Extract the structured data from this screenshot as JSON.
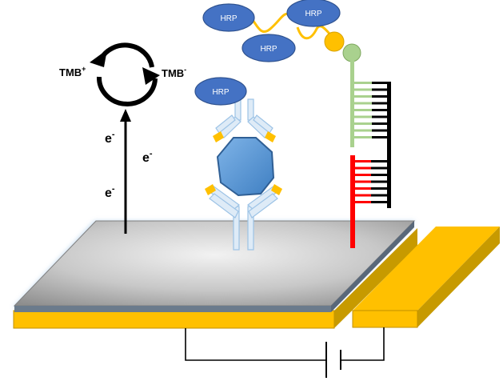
{
  "labels": {
    "hrp": "HRP",
    "tmb_ox_base": "TMB",
    "tmb_ox_sup": "+",
    "tmb_red_base": "TMB",
    "tmb_red_sup": "-",
    "electron_base": "e",
    "electron_sup": "-"
  },
  "colors": {
    "hrp_fill": "#4472c4",
    "hrp_stroke": "#2f528f",
    "gold": "#ffc000",
    "gold_dark": "#c09000",
    "antigen": "#5b9bd5",
    "antibody_fill": "#deebf7",
    "antibody_stroke": "#9dc3e6",
    "dna_green": "#a9d18e",
    "dna_red": "#ff0000",
    "dna_black": "#000000",
    "bead_yellow": "#ffc000",
    "bead_green": "#a9d18e",
    "circuit": "#000000"
  }
}
